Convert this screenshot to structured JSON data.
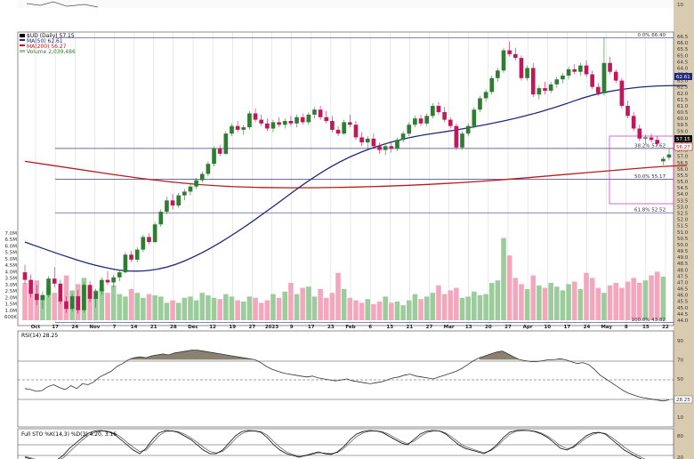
{
  "colors": {
    "up": "#2e7d32",
    "down": "#c2185b",
    "ma50": "#1f2a7a",
    "ma200": "#b71c1c",
    "volUp": "#9ccc9c",
    "volDown": "#f4a6bd",
    "grid": "#c8c8c8",
    "fib": "#3a3a8c",
    "box": "#c64cc6",
    "panelBorder": "#444",
    "rsiFill": "#8b8170",
    "frame": "#d9cbb0"
  },
  "legend": {
    "main": "$UD (Daily) 57.15",
    "ma50": "MA(50) 62.61",
    "ma200": "MA(200) 56.27",
    "volume": "Volume 2,039,486",
    "rsi": "RSI(14) 28.25",
    "sto": "Full STO %K(14,3) %D(3) 4.20, 3.16"
  },
  "fib_labels": [
    "0.0% 66.40",
    "38.2% 57.62",
    "50.0% 55.17",
    "61.8% 52.52",
    "100.0% 43.82"
  ],
  "price_ticks": [
    "66.5",
    "66.0",
    "65.5",
    "65.0",
    "64.5",
    "64.0",
    "63.5",
    "63.0",
    "62.5",
    "62.0",
    "61.5",
    "61.0",
    "60.5",
    "60.0",
    "59.5",
    "59.0",
    "58.5",
    "58.0",
    "57.5",
    "57.0",
    "56.5",
    "56.0",
    "55.5",
    "55.0",
    "54.5",
    "54.0",
    "53.5",
    "53.0",
    "52.5",
    "52.0",
    "51.5",
    "51.0",
    "50.5",
    "50.0",
    "49.5",
    "49.0",
    "48.5",
    "48.0",
    "47.5",
    "47.0",
    "46.5",
    "46.0",
    "45.5",
    "45.0",
    "44.5",
    "44.0"
  ],
  "volume_ticks": [
    "7.0M",
    "6.5M",
    "6.0M",
    "5.5M",
    "5.0M",
    "4.5M",
    "4.0M",
    "3.5M",
    "3.0M",
    "2.5M",
    "2.0M",
    "1.5M",
    "1.0M",
    "600K"
  ],
  "price_tags": {
    "ma50": "62.61",
    "last": "57.15",
    "ma200": "56.27"
  },
  "rsi_ticks": [
    "90",
    "70",
    "50",
    "30",
    "10"
  ],
  "rsi_tag": "28.25",
  "sto_ticks": [
    "80",
    "20"
  ],
  "x_labels": [
    "Oct",
    "17",
    "24",
    "Nov",
    "7",
    "14",
    "21",
    "28",
    "Dec",
    "12",
    "19",
    "27",
    "2023",
    "9",
    "17",
    "23",
    "Feb",
    "6",
    "13",
    "21",
    "27",
    "Mar",
    "13",
    "20",
    "27",
    "Apr",
    "10",
    "17",
    "24",
    "May",
    "8",
    "15",
    "22"
  ],
  "top_label": "10",
  "chart_data": {
    "type": "candlestick",
    "title": "$UD (Daily) 57.15",
    "ylim": [
      44.0,
      66.5
    ],
    "fib_levels": [
      66.4,
      57.62,
      55.17,
      52.52,
      43.82
    ],
    "candles": [
      [
        47.8,
        48.4,
        46.9,
        47.2
      ],
      [
        47.2,
        47.6,
        45.8,
        46.1
      ],
      [
        46.1,
        46.8,
        45.2,
        45.6
      ],
      [
        45.6,
        46.3,
        44.9,
        46.0
      ],
      [
        46.0,
        47.5,
        45.8,
        47.3
      ],
      [
        47.3,
        48.2,
        46.6,
        46.9
      ],
      [
        46.9,
        47.2,
        45.3,
        45.5
      ],
      [
        45.5,
        45.9,
        44.6,
        44.9
      ],
      [
        44.9,
        46.1,
        44.7,
        45.9
      ],
      [
        45.9,
        46.4,
        44.5,
        44.8
      ],
      [
        44.8,
        47.0,
        44.6,
        46.8
      ],
      [
        46.8,
        47.1,
        45.4,
        45.7
      ],
      [
        45.7,
        46.5,
        45.0,
        46.3
      ],
      [
        46.3,
        47.4,
        46.0,
        47.2
      ],
      [
        47.2,
        47.9,
        46.8,
        47.0
      ],
      [
        47.0,
        47.6,
        46.6,
        47.4
      ],
      [
        47.4,
        48.0,
        47.1,
        47.8
      ],
      [
        47.8,
        49.4,
        47.7,
        49.2
      ],
      [
        49.2,
        49.5,
        48.6,
        48.8
      ],
      [
        48.8,
        49.8,
        48.6,
        49.6
      ],
      [
        49.6,
        50.8,
        49.4,
        50.6
      ],
      [
        50.6,
        50.9,
        50.0,
        50.2
      ],
      [
        50.2,
        51.8,
        50.1,
        51.6
      ],
      [
        51.6,
        52.8,
        51.4,
        52.6
      ],
      [
        52.6,
        53.8,
        52.4,
        53.5
      ],
      [
        53.5,
        54.0,
        52.8,
        53.1
      ],
      [
        53.1,
        54.1,
        52.9,
        53.9
      ],
      [
        53.9,
        54.4,
        53.5,
        54.2
      ],
      [
        54.2,
        54.8,
        53.9,
        54.6
      ],
      [
        54.6,
        55.3,
        54.4,
        55.1
      ],
      [
        55.1,
        55.8,
        54.9,
        55.6
      ],
      [
        55.6,
        56.6,
        55.4,
        56.4
      ],
      [
        56.4,
        57.8,
        56.2,
        57.6
      ],
      [
        57.6,
        57.9,
        57.0,
        57.2
      ],
      [
        57.2,
        59.0,
        57.1,
        58.8
      ],
      [
        58.8,
        59.6,
        58.6,
        59.4
      ],
      [
        59.4,
        59.8,
        58.9,
        59.1
      ],
      [
        59.1,
        59.5,
        58.7,
        59.3
      ],
      [
        59.3,
        60.6,
        59.1,
        60.4
      ],
      [
        60.4,
        60.8,
        59.7,
        59.9
      ],
      [
        59.9,
        60.3,
        59.4,
        59.6
      ],
      [
        59.6,
        60.0,
        59.0,
        59.2
      ],
      [
        59.2,
        59.9,
        58.9,
        59.7
      ],
      [
        59.7,
        60.1,
        59.3,
        59.5
      ],
      [
        59.5,
        60.0,
        59.2,
        59.8
      ],
      [
        59.8,
        60.2,
        59.4,
        59.6
      ],
      [
        59.6,
        60.3,
        59.3,
        60.1
      ],
      [
        60.1,
        60.4,
        59.5,
        59.7
      ],
      [
        59.7,
        60.5,
        59.5,
        60.3
      ],
      [
        60.3,
        60.9,
        60.0,
        60.7
      ],
      [
        60.7,
        61.0,
        59.9,
        60.1
      ],
      [
        60.1,
        60.6,
        59.6,
        59.8
      ],
      [
        59.8,
        60.2,
        58.9,
        59.1
      ],
      [
        59.1,
        59.4,
        58.6,
        58.8
      ],
      [
        58.8,
        59.9,
        58.7,
        59.7
      ],
      [
        59.7,
        60.3,
        59.3,
        59.5
      ],
      [
        59.5,
        59.8,
        58.3,
        58.5
      ],
      [
        58.5,
        58.9,
        57.8,
        58.1
      ],
      [
        58.1,
        58.6,
        57.5,
        58.4
      ],
      [
        58.4,
        58.8,
        57.6,
        57.8
      ],
      [
        57.8,
        58.1,
        57.2,
        57.5
      ],
      [
        57.5,
        58.0,
        57.1,
        57.8
      ],
      [
        57.8,
        58.2,
        57.3,
        57.6
      ],
      [
        57.6,
        58.5,
        57.4,
        58.3
      ],
      [
        58.3,
        59.0,
        58.1,
        58.8
      ],
      [
        58.8,
        59.7,
        58.6,
        59.5
      ],
      [
        59.5,
        60.2,
        59.3,
        60.0
      ],
      [
        60.0,
        60.3,
        59.4,
        59.6
      ],
      [
        59.6,
        60.4,
        59.4,
        60.2
      ],
      [
        60.2,
        61.2,
        60.0,
        61.0
      ],
      [
        61.0,
        61.3,
        60.3,
        60.5
      ],
      [
        60.5,
        60.9,
        59.7,
        59.9
      ],
      [
        59.9,
        60.1,
        59.2,
        59.4
      ],
      [
        59.4,
        59.6,
        57.5,
        57.7
      ],
      [
        57.7,
        59.0,
        57.5,
        58.8
      ],
      [
        58.8,
        59.6,
        58.6,
        59.4
      ],
      [
        59.4,
        60.9,
        59.2,
        60.7
      ],
      [
        60.7,
        61.8,
        60.5,
        61.6
      ],
      [
        61.6,
        62.3,
        61.3,
        62.1
      ],
      [
        62.1,
        63.4,
        61.9,
        63.2
      ],
      [
        63.2,
        64.0,
        62.9,
        63.8
      ],
      [
        63.8,
        65.6,
        63.6,
        65.4
      ],
      [
        65.4,
        66.1,
        64.9,
        65.1
      ],
      [
        65.1,
        65.6,
        64.6,
        64.8
      ],
      [
        64.8,
        65.0,
        63.0,
        63.2
      ],
      [
        63.2,
        64.2,
        63.0,
        64.0
      ],
      [
        64.0,
        64.4,
        61.7,
        61.9
      ],
      [
        61.9,
        62.6,
        61.5,
        62.4
      ],
      [
        62.4,
        62.9,
        61.9,
        62.2
      ],
      [
        62.2,
        62.9,
        62.0,
        62.7
      ],
      [
        62.7,
        63.3,
        62.4,
        63.1
      ],
      [
        63.1,
        63.6,
        62.8,
        63.4
      ],
      [
        63.4,
        64.1,
        63.1,
        63.9
      ],
      [
        63.9,
        64.3,
        63.5,
        63.7
      ],
      [
        63.7,
        64.4,
        63.4,
        64.2
      ],
      [
        64.2,
        64.6,
        63.3,
        63.5
      ],
      [
        63.5,
        63.8,
        62.3,
        62.5
      ],
      [
        62.5,
        62.8,
        61.8,
        62.0
      ],
      [
        62.0,
        66.4,
        61.8,
        64.4
      ],
      [
        64.4,
        64.9,
        63.5,
        63.7
      ],
      [
        63.7,
        63.9,
        62.8,
        63.0
      ],
      [
        63.0,
        63.2,
        60.8,
        61.0
      ],
      [
        61.0,
        61.4,
        60.0,
        60.2
      ],
      [
        60.2,
        60.5,
        59.0,
        59.2
      ],
      [
        59.2,
        59.5,
        58.2,
        58.4
      ],
      [
        58.4,
        58.7,
        58.0,
        58.5
      ],
      [
        58.5,
        58.8,
        58.1,
        58.3
      ],
      [
        58.3,
        58.6,
        57.8,
        58.0
      ],
      [
        56.6,
        57.0,
        56.3,
        56.8
      ],
      [
        56.9,
        57.6,
        56.7,
        57.15
      ]
    ],
    "ma50": [
      [
        0,
        50.2
      ],
      [
        6,
        49.2
      ],
      [
        12,
        48.3
      ],
      [
        18,
        47.8
      ],
      [
        24,
        48.1
      ],
      [
        30,
        49.3
      ],
      [
        36,
        51.0
      ],
      [
        42,
        53.0
      ],
      [
        48,
        55.1
      ],
      [
        54,
        56.8
      ],
      [
        60,
        57.9
      ],
      [
        66,
        58.6
      ],
      [
        72,
        59.0
      ],
      [
        78,
        59.5
      ],
      [
        84,
        60.1
      ],
      [
        90,
        60.9
      ],
      [
        96,
        61.9
      ],
      [
        102,
        62.4
      ],
      [
        107,
        62.6
      ],
      [
        112,
        62.61
      ]
    ],
    "ma200": [
      [
        0,
        56.6
      ],
      [
        10,
        55.9
      ],
      [
        20,
        55.2
      ],
      [
        30,
        54.7
      ],
      [
        40,
        54.5
      ],
      [
        50,
        54.5
      ],
      [
        60,
        54.6
      ],
      [
        70,
        54.8
      ],
      [
        80,
        55.1
      ],
      [
        90,
        55.5
      ],
      [
        100,
        55.9
      ],
      [
        108,
        56.2
      ],
      [
        112,
        56.27
      ]
    ],
    "volume": [
      3.0,
      2.5,
      3.2,
      2.0,
      2.7,
      2.2,
      1.6,
      3.6,
      2.4,
      2.9,
      3.4,
      2.8,
      2.4,
      2.6,
      2.2,
      2.8,
      2.1,
      1.9,
      2.5,
      2.2,
      1.8,
      2.1,
      2.0,
      1.9,
      1.4,
      1.6,
      1.4,
      1.8,
      1.9,
      1.6,
      2.2,
      2.0,
      1.8,
      1.7,
      2.1,
      1.9,
      1.6,
      1.5,
      1.9,
      1.8,
      1.4,
      1.6,
      2.1,
      1.8,
      2.3,
      3.0,
      2.1,
      2.6,
      2.7,
      1.9,
      2.5,
      1.8,
      2.2,
      3.8,
      2.5,
      1.8,
      1.6,
      1.4,
      1.7,
      1.3,
      1.5,
      1.9,
      1.4,
      1.5,
      1.2,
      1.6,
      2.1,
      1.7,
      1.9,
      2.2,
      2.8,
      2.1,
      2.4,
      2.6,
      1.8,
      1.9,
      2.3,
      2.0,
      2.1,
      3.0,
      3.2,
      6.6,
      5.2,
      3.4,
      2.9,
      2.5,
      3.6,
      2.8,
      2.6,
      3.0,
      2.7,
      2.4,
      2.9,
      3.1,
      2.5,
      3.8,
      3.4,
      2.6,
      2.2,
      2.8,
      3.0,
      2.6,
      3.1,
      3.4,
      3.0,
      3.2,
      3.6,
      3.9,
      3.5
    ],
    "rsi": [
      40,
      39,
      37,
      38,
      42,
      44,
      41,
      39,
      43,
      40,
      45,
      44,
      47,
      52,
      55,
      58,
      63,
      66,
      70,
      72,
      73,
      72,
      74,
      75,
      76,
      75,
      77,
      78,
      79,
      80,
      80,
      79,
      78,
      77,
      76,
      75,
      74,
      73,
      72,
      71,
      70,
      67,
      63,
      60,
      58,
      56,
      55,
      54,
      53,
      52,
      53,
      51,
      50,
      49,
      48,
      49,
      50,
      48,
      47,
      46,
      45,
      46,
      47,
      49,
      51,
      52,
      54,
      55,
      53,
      52,
      51,
      50,
      52,
      54,
      56,
      58,
      61,
      65,
      69,
      72,
      74,
      76,
      78,
      79,
      76,
      73,
      70,
      69,
      68,
      68,
      69,
      70,
      70,
      71,
      70,
      68,
      66,
      67,
      65,
      60,
      54,
      50,
      46,
      42,
      38,
      35,
      33,
      31,
      30,
      29,
      28,
      27,
      28.25
    ],
    "sto_k": [
      20,
      15,
      8,
      5,
      8,
      12,
      25,
      45,
      60,
      75,
      88,
      94,
      95,
      92,
      85,
      70,
      55,
      40,
      30,
      45,
      70,
      88,
      95,
      94,
      90,
      80,
      70,
      55,
      40,
      30,
      30,
      40,
      60,
      80,
      92,
      95,
      94,
      90,
      75,
      55,
      40,
      30,
      25,
      20,
      25,
      30,
      35,
      30,
      28,
      35,
      50,
      70,
      85,
      92,
      95,
      94,
      90,
      80,
      70,
      60,
      55,
      70,
      85,
      93,
      95,
      94,
      85,
      70,
      55,
      45,
      40,
      35,
      30,
      40,
      55,
      75,
      90,
      95,
      96,
      95,
      92,
      85,
      75,
      60,
      45,
      40,
      50,
      65,
      80,
      88,
      90,
      85,
      70,
      55,
      40,
      30,
      20,
      12,
      8,
      5,
      4,
      4.2
    ],
    "sto_d": [
      22,
      18,
      12,
      8,
      8,
      10,
      18,
      35,
      52,
      68,
      82,
      90,
      94,
      93,
      88,
      77,
      62,
      48,
      36,
      40,
      60,
      80,
      92,
      94,
      92,
      85,
      75,
      62,
      48,
      36,
      32,
      36,
      52,
      72,
      86,
      93,
      94,
      92,
      82,
      64,
      48,
      35,
      28,
      22,
      24,
      28,
      32,
      32,
      30,
      33,
      45,
      62,
      78,
      88,
      93,
      94,
      92,
      85,
      75,
      65,
      58,
      65,
      78,
      89,
      94,
      94,
      88,
      76,
      62,
      50,
      44,
      38,
      33,
      38,
      50,
      68,
      84,
      93,
      95,
      95,
      93,
      88,
      79,
      66,
      52,
      44,
      47,
      60,
      74,
      84,
      89,
      87,
      76,
      62,
      48,
      36,
      26,
      16,
      10,
      6,
      4,
      3.16
    ]
  }
}
